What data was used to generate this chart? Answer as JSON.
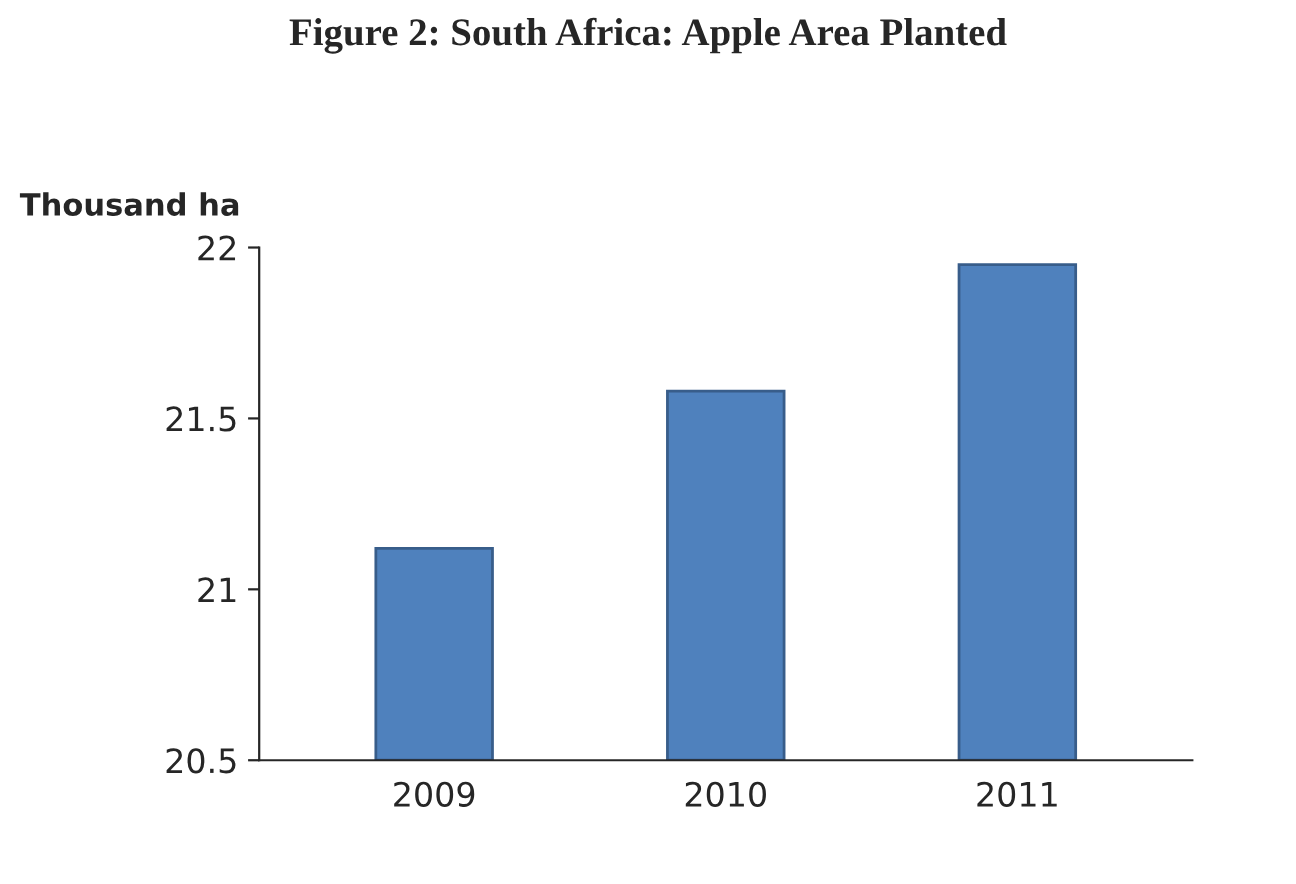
{
  "chart_data": {
    "type": "bar",
    "title": "Figure 2: South Africa: Apple Area Planted",
    "ylabel": "Thousand ha",
    "categories": [
      "2009",
      "2010",
      "2011"
    ],
    "values": [
      21.12,
      21.58,
      21.95
    ],
    "color": "#4f81bd",
    "ylim": [
      20.5,
      22
    ],
    "yticks": [
      20.5,
      21,
      21.5,
      22
    ],
    "grid": false
  }
}
